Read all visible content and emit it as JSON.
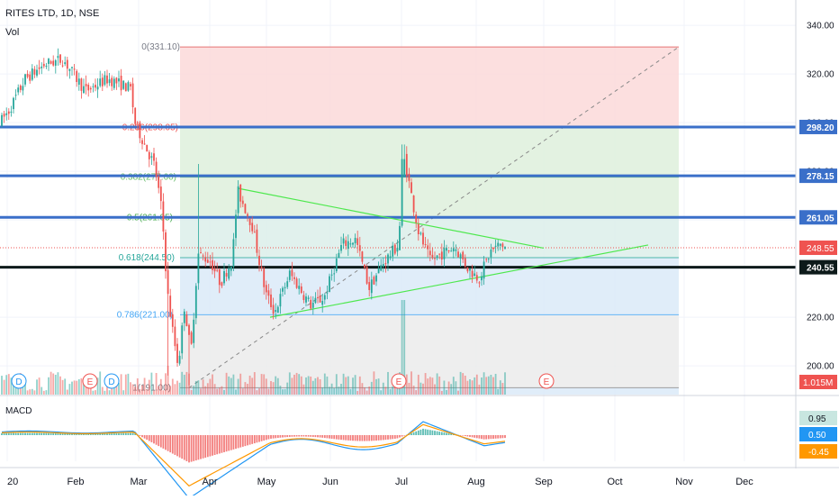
{
  "header": {
    "symbol_line": "RITES LTD, 1D, NSE",
    "volume_label": "Vol",
    "macd_label": "MACD"
  },
  "colors": {
    "up": "#26a69a",
    "down": "#ef5350",
    "level_line": "#3a6fc9",
    "axis_text": "#131722",
    "fib_zone_red": "#fcd9d9",
    "fib_zone_green": "#def0dc",
    "fib_zone_teal": "#dceeea",
    "fib_zone_blue": "#dbeaf8",
    "fib_zone_grey": "#ebebeb",
    "triangle": "#4ee84e",
    "macd_line": "#2196f3",
    "signal_line": "#ff9800",
    "black_level": "#0d1a1a"
  },
  "chart_data": [
    {
      "type": "candlestick",
      "title": "RITES LTD, 1D, NSE",
      "x_axis": {
        "tick_labels": [
          "20",
          "Feb",
          "Mar",
          "Apr",
          "May",
          "Jun",
          "Jul",
          "Aug",
          "Sep",
          "Oct",
          "Nov",
          "Dec"
        ]
      },
      "y_axis": {
        "ylim": [
          188,
          343
        ],
        "tick_labels": [
          "340.00",
          "320.00",
          "300.00",
          "280.00",
          "260.00",
          "240.00",
          "220.00",
          "200.00"
        ]
      },
      "fibonacci_retracement": [
        {
          "label": "0(331.10)",
          "price": 331.1
        },
        {
          "label": "0.236(298.05)",
          "price": 298.05
        },
        {
          "label": "0.382(277.60)",
          "price": 277.6
        },
        {
          "label": "0.5(261.05)",
          "price": 261.05
        },
        {
          "label": "0.618(244.50)",
          "price": 244.5
        },
        {
          "label": "0.786(221.00)",
          "price": 221.0
        },
        {
          "label": "1(191.00)",
          "price": 191.0
        }
      ],
      "horizontal_levels": [
        {
          "label": "298.20",
          "price": 298.2
        },
        {
          "label": "278.15",
          "price": 278.15
        },
        {
          "label": "261.05",
          "price": 261.05
        },
        {
          "label": "240.55",
          "price": 240.55
        }
      ],
      "last_price": {
        "label": "248.55",
        "price": 248.55
      },
      "volume": {
        "label": "Vol",
        "last_label": "1.015M",
        "event_markers": [
          "D",
          "E",
          "D",
          "E",
          "E"
        ]
      },
      "grid": true
    },
    {
      "type": "line",
      "title": "MACD",
      "series": [
        {
          "name": "MACD"
        },
        {
          "name": "Signal"
        },
        {
          "name": "Histogram"
        }
      ],
      "y_axis": {
        "tick_labels": [
          "0.95",
          "0.50",
          "-0.45"
        ]
      },
      "grid": true
    }
  ]
}
